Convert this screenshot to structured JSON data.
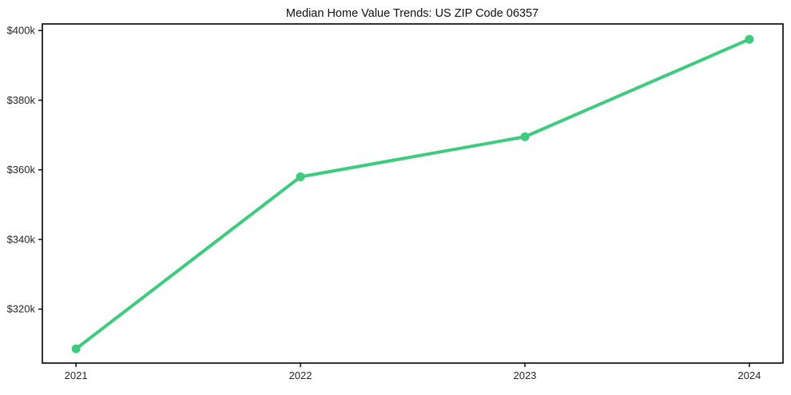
{
  "chart_data": {
    "type": "line",
    "title": "Median Home Value Trends: US ZIP Code 06357",
    "xlabel": "",
    "ylabel": "",
    "x": [
      2021,
      2022,
      2023,
      2024
    ],
    "x_tick_labels": [
      "2021",
      "2022",
      "2023",
      "2024"
    ],
    "series": [
      {
        "name": "median-home-value",
        "values": [
          308600,
          358000,
          369500,
          397500
        ],
        "color": "#3dcb7e",
        "marker": "circle",
        "line_width": 4
      }
    ],
    "y_ticks": [
      320000,
      340000,
      360000,
      380000,
      400000
    ],
    "y_tick_labels": [
      "$320k",
      "$340k",
      "$360k",
      "$380k",
      "$400k"
    ],
    "ylim": [
      304500,
      401900
    ],
    "xlim": [
      2020.85,
      2024.15
    ],
    "grid": false,
    "legend": "none",
    "axis_color": "#000000",
    "text_color": "#262626",
    "background": "#ffffff"
  }
}
